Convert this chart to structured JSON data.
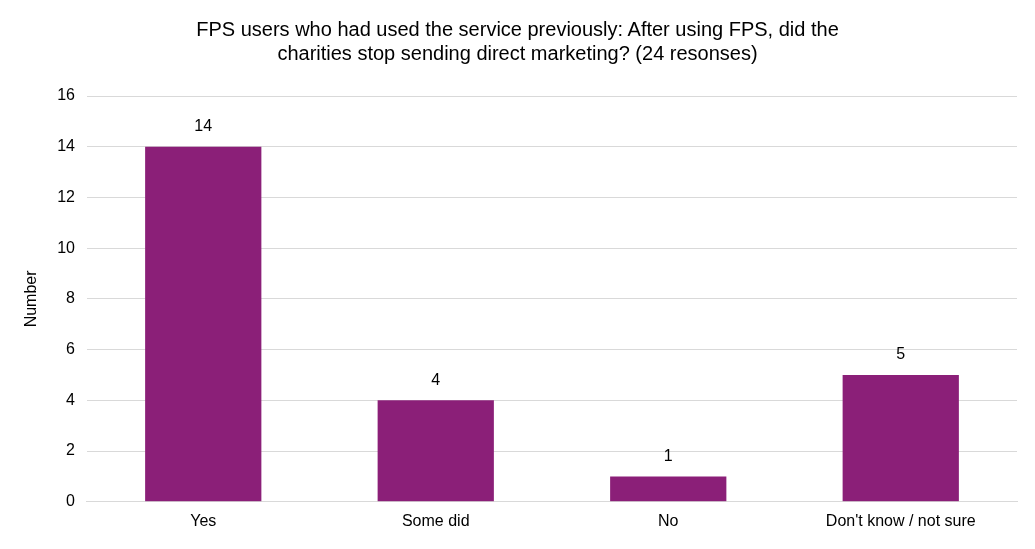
{
  "chart_data": {
    "type": "bar",
    "title": [
      "FPS users who had used the service previously: After using FPS, did the",
      "charities stop sending direct marketing? (24 resonses)"
    ],
    "ylabel": "Number",
    "categories": [
      "Yes",
      "Some did",
      "No",
      "Don't know / not sure"
    ],
    "values": [
      14,
      4,
      1,
      5
    ],
    "color": "#8b1f78",
    "ylim": [
      0,
      16
    ],
    "yticks": [
      0,
      2,
      4,
      6,
      8,
      10,
      12,
      14,
      16
    ],
    "grid": "y",
    "legend": false,
    "data_labels": true
  }
}
